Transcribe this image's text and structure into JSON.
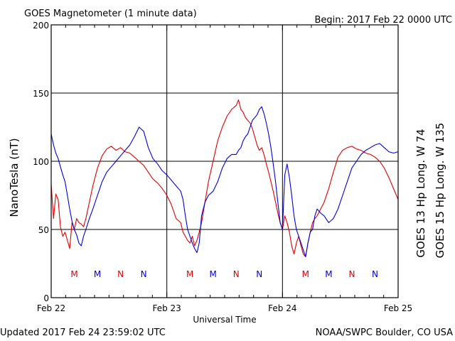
{
  "chart_data": {
    "type": "line",
    "title": "GOES Magnetometer (1 minute data)",
    "begin_label": "Begin:  2017 Feb 22 0000 UTC",
    "xlabel": "Universal Time",
    "ylabel": "NanoTesla (nT)",
    "x_tick_labels": [
      "Feb 22",
      "Feb 23",
      "Feb 24",
      "Feb 25"
    ],
    "xlim_days": [
      0,
      3
    ],
    "ylim": [
      0,
      200
    ],
    "y_ticks": [
      0,
      50,
      100,
      150,
      200
    ],
    "grid": true,
    "noon_marker_x_days": [
      0.2,
      0.4,
      0.6,
      0.8,
      1.2,
      1.4,
      1.6,
      1.8,
      2.2,
      2.4,
      2.6,
      2.8
    ],
    "series": [
      {
        "name": "GOES 13 Hp  Long. W 74",
        "color": "#e00000",
        "markers": [
          "M",
          "N"
        ],
        "marker_x_days": [
          0.2,
          0.6,
          1.2,
          1.6,
          2.2,
          2.6
        ],
        "x_days": [
          0,
          0.02,
          0.04,
          0.06,
          0.08,
          0.1,
          0.12,
          0.14,
          0.16,
          0.18,
          0.2,
          0.22,
          0.24,
          0.26,
          0.28,
          0.3,
          0.33,
          0.36,
          0.4,
          0.44,
          0.48,
          0.52,
          0.56,
          0.6,
          0.64,
          0.68,
          0.72,
          0.76,
          0.8,
          0.84,
          0.88,
          0.92,
          0.96,
          1.0,
          1.04,
          1.08,
          1.12,
          1.14,
          1.16,
          1.18,
          1.2,
          1.22,
          1.24,
          1.26,
          1.28,
          1.3,
          1.33,
          1.36,
          1.4,
          1.44,
          1.48,
          1.52,
          1.56,
          1.6,
          1.62,
          1.64,
          1.66,
          1.68,
          1.7,
          1.72,
          1.74,
          1.76,
          1.78,
          1.8,
          1.82,
          1.84,
          1.86,
          1.88,
          1.9,
          1.92,
          1.94,
          1.96,
          1.98,
          2.0,
          2.02,
          2.04,
          2.06,
          2.08,
          2.1,
          2.12,
          2.14,
          2.16,
          2.18,
          2.2,
          2.22,
          2.24,
          2.26,
          2.28,
          2.3,
          2.33,
          2.36,
          2.4,
          2.44,
          2.48,
          2.52,
          2.56,
          2.6,
          2.64,
          2.68,
          2.72,
          2.76,
          2.8,
          2.84,
          2.88,
          2.92,
          2.96,
          3.0
        ],
        "values": [
          83,
          58,
          76,
          72,
          52,
          45,
          48,
          42,
          36,
          55,
          50,
          58,
          55,
          54,
          52,
          58,
          70,
          82,
          95,
          104,
          109,
          111,
          108,
          110,
          107,
          106,
          103,
          100,
          97,
          92,
          87,
          84,
          80,
          75,
          68,
          58,
          55,
          48,
          45,
          42,
          40,
          45,
          38,
          42,
          48,
          55,
          70,
          85,
          100,
          115,
          125,
          133,
          138,
          141,
          145,
          138,
          136,
          132,
          130,
          128,
          124,
          118,
          112,
          108,
          110,
          105,
          98,
          92,
          85,
          78,
          70,
          62,
          55,
          50,
          60,
          55,
          48,
          38,
          32,
          40,
          45,
          38,
          32,
          30,
          40,
          48,
          55,
          58,
          60,
          65,
          70,
          80,
          92,
          103,
          108,
          110,
          111,
          109,
          108,
          106,
          105,
          103,
          100,
          95,
          88,
          80,
          72
        ]
      },
      {
        "name": "GOES 15 Hp  Long. W 135",
        "color": "#0000e0",
        "markers": [
          "M",
          "N"
        ],
        "marker_x_days": [
          0.4,
          0.8,
          1.4,
          1.8,
          2.4,
          2.8
        ],
        "x_days": [
          0,
          0.02,
          0.04,
          0.06,
          0.08,
          0.1,
          0.12,
          0.14,
          0.16,
          0.18,
          0.2,
          0.22,
          0.24,
          0.26,
          0.28,
          0.3,
          0.33,
          0.36,
          0.4,
          0.44,
          0.48,
          0.52,
          0.56,
          0.6,
          0.64,
          0.68,
          0.72,
          0.76,
          0.8,
          0.84,
          0.88,
          0.92,
          0.96,
          1.0,
          1.04,
          1.08,
          1.12,
          1.14,
          1.16,
          1.18,
          1.2,
          1.22,
          1.24,
          1.26,
          1.28,
          1.3,
          1.33,
          1.36,
          1.4,
          1.44,
          1.48,
          1.52,
          1.56,
          1.6,
          1.62,
          1.64,
          1.66,
          1.68,
          1.7,
          1.72,
          1.74,
          1.76,
          1.78,
          1.8,
          1.82,
          1.84,
          1.86,
          1.88,
          1.9,
          1.92,
          1.94,
          1.96,
          1.98,
          2.0,
          2.02,
          2.04,
          2.06,
          2.08,
          2.1,
          2.12,
          2.14,
          2.16,
          2.18,
          2.2,
          2.22,
          2.24,
          2.26,
          2.28,
          2.3,
          2.33,
          2.36,
          2.4,
          2.44,
          2.48,
          2.52,
          2.56,
          2.6,
          2.64,
          2.68,
          2.72,
          2.76,
          2.8,
          2.84,
          2.88,
          2.92,
          2.96,
          3.0
        ],
        "values": [
          120,
          112,
          106,
          102,
          96,
          90,
          85,
          75,
          65,
          56,
          50,
          46,
          40,
          38,
          45,
          50,
          58,
          65,
          75,
          85,
          92,
          96,
          100,
          104,
          108,
          112,
          118,
          125,
          122,
          110,
          102,
          98,
          93,
          90,
          86,
          82,
          78,
          72,
          60,
          50,
          45,
          40,
          36,
          33,
          40,
          60,
          70,
          75,
          78,
          85,
          95,
          102,
          105,
          105,
          108,
          110,
          115,
          118,
          120,
          125,
          130,
          132,
          134,
          138,
          140,
          135,
          128,
          120,
          110,
          98,
          85,
          70,
          55,
          50,
          90,
          98,
          88,
          75,
          60,
          50,
          45,
          40,
          35,
          30,
          40,
          48,
          50,
          60,
          65,
          62,
          60,
          55,
          58,
          65,
          75,
          85,
          95,
          100,
          105,
          108,
          110,
          112,
          113,
          110,
          107,
          106,
          107
        ]
      }
    ]
  },
  "footer": {
    "updated": "Updated 2017 Feb 24 23:59:02 UTC",
    "source": "NOAA/SWPC Boulder, CO USA"
  }
}
